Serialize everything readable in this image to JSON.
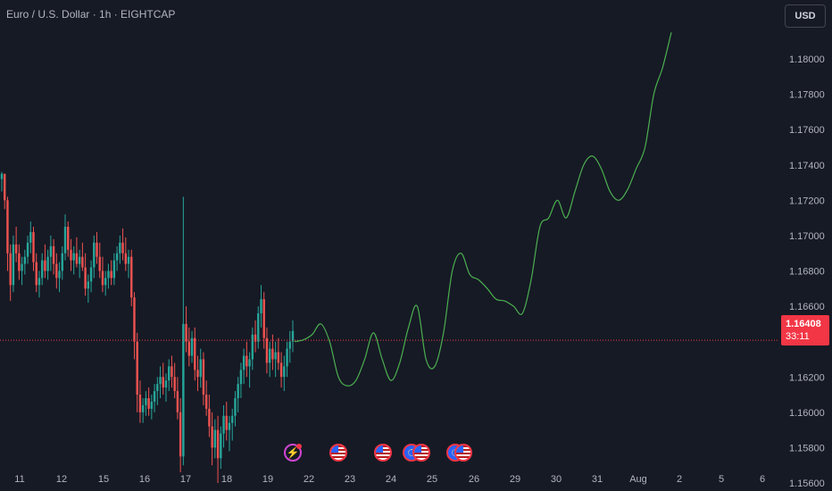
{
  "header": {
    "symbol_title": "Euro / U.S. Dollar · 1h · EIGHTCAP",
    "currency_button": "USD"
  },
  "price_axis": {
    "labels": [
      "1.18000",
      "1.17800",
      "1.17600",
      "1.17400",
      "1.17200",
      "1.17000",
      "1.16800",
      "1.16600",
      "1.16200",
      "1.16000",
      "1.15800",
      "1.15600"
    ]
  },
  "time_axis": {
    "labels": [
      "11",
      "12",
      "15",
      "16",
      "17",
      "18",
      "19",
      "22",
      "23",
      "24",
      "25",
      "26",
      "29",
      "30",
      "31",
      "Aug",
      "2",
      "5",
      "6"
    ]
  },
  "current_price": {
    "value": "1.16408",
    "countdown": "33:11"
  },
  "events": [
    {
      "icon": "lightning-event-icon"
    },
    {
      "icon": "us-flag-event-icon"
    },
    {
      "icon": "us-flag-event-icon"
    },
    {
      "icon": "eu-flag-event-icon"
    },
    {
      "icon": "us-flag-event-icon"
    },
    {
      "icon": "eu-flag-event-icon"
    },
    {
      "icon": "us-flag-event-icon"
    }
  ],
  "colors": {
    "background": "#161a25",
    "up": "#26a69a",
    "down": "#ef5350",
    "forecast_line": "#4caf50",
    "price_line": "#f23645",
    "axis_text": "#b2b5be"
  },
  "chart_data": {
    "type": "candlestick",
    "ylim": [
      1.1552,
      1.1818
    ],
    "current_price": 1.16408,
    "candles": [
      [
        1.1732,
        1.1736,
        1.1725,
        1.1735
      ],
      [
        1.1735,
        1.1735,
        1.1715,
        1.172
      ],
      [
        1.172,
        1.1722,
        1.168,
        1.169
      ],
      [
        1.169,
        1.1695,
        1.1663,
        1.1672
      ],
      [
        1.1672,
        1.17,
        1.1668,
        1.1695
      ],
      [
        1.1695,
        1.1705,
        1.1685,
        1.169
      ],
      [
        1.169,
        1.1695,
        1.1675,
        1.168
      ],
      [
        1.168,
        1.1688,
        1.1672,
        1.1684
      ],
      [
        1.1684,
        1.1692,
        1.1678,
        1.1688
      ],
      [
        1.1688,
        1.17,
        1.1684,
        1.1696
      ],
      [
        1.1696,
        1.1708,
        1.169,
        1.1702
      ],
      [
        1.1702,
        1.1705,
        1.168,
        1.1685
      ],
      [
        1.1685,
        1.169,
        1.1668,
        1.1672
      ],
      [
        1.1672,
        1.168,
        1.1665,
        1.1676
      ],
      [
        1.1676,
        1.169,
        1.1672,
        1.1686
      ],
      [
        1.1686,
        1.1695,
        1.1676,
        1.168
      ],
      [
        1.168,
        1.1692,
        1.1675,
        1.1688
      ],
      [
        1.1688,
        1.17,
        1.168,
        1.1694
      ],
      [
        1.1694,
        1.1698,
        1.1678,
        1.1684
      ],
      [
        1.1684,
        1.169,
        1.167,
        1.1676
      ],
      [
        1.1676,
        1.1685,
        1.1668,
        1.168
      ],
      [
        1.168,
        1.1694,
        1.1675,
        1.169
      ],
      [
        1.169,
        1.1712,
        1.1686,
        1.1705
      ],
      [
        1.1705,
        1.1708,
        1.1688,
        1.1692
      ],
      [
        1.1692,
        1.1698,
        1.168,
        1.1686
      ],
      [
        1.1686,
        1.1694,
        1.1678,
        1.169
      ],
      [
        1.169,
        1.1699,
        1.1682,
        1.1684
      ],
      [
        1.1684,
        1.1692,
        1.1676,
        1.1688
      ],
      [
        1.1688,
        1.1696,
        1.168,
        1.1682
      ],
      [
        1.1682,
        1.169,
        1.1666,
        1.167
      ],
      [
        1.167,
        1.1678,
        1.1662,
        1.1674
      ],
      [
        1.1674,
        1.1686,
        1.1668,
        1.1682
      ],
      [
        1.1682,
        1.17,
        1.1676,
        1.1696
      ],
      [
        1.1696,
        1.1702,
        1.1684,
        1.1688
      ],
      [
        1.1688,
        1.1696,
        1.1676,
        1.168
      ],
      [
        1.168,
        1.1688,
        1.1668,
        1.1672
      ],
      [
        1.1672,
        1.168,
        1.1666,
        1.1676
      ],
      [
        1.1676,
        1.1684,
        1.167,
        1.168
      ],
      [
        1.168,
        1.1686,
        1.1672,
        1.1676
      ],
      [
        1.1676,
        1.169,
        1.1672,
        1.1686
      ],
      [
        1.1686,
        1.1694,
        1.168,
        1.169
      ],
      [
        1.169,
        1.17,
        1.1684,
        1.1696
      ],
      [
        1.1696,
        1.1704,
        1.1686,
        1.169
      ],
      [
        1.169,
        1.1699,
        1.168,
        1.1684
      ],
      [
        1.1684,
        1.1692,
        1.1676,
        1.1688
      ],
      [
        1.1688,
        1.1692,
        1.166,
        1.1665
      ],
      [
        1.1665,
        1.1668,
        1.163,
        1.164
      ],
      [
        1.164,
        1.1645,
        1.16,
        1.161
      ],
      [
        1.161,
        1.1618,
        1.1594,
        1.16
      ],
      [
        1.16,
        1.1608,
        1.1594,
        1.1604
      ],
      [
        1.1604,
        1.1612,
        1.1598,
        1.1608
      ],
      [
        1.1608,
        1.1614,
        1.1598,
        1.1602
      ],
      [
        1.1602,
        1.161,
        1.1596,
        1.1606
      ],
      [
        1.1606,
        1.1616,
        1.16,
        1.1612
      ],
      [
        1.1612,
        1.162,
        1.1604,
        1.1616
      ],
      [
        1.1616,
        1.1626,
        1.1608,
        1.162
      ],
      [
        1.162,
        1.1628,
        1.161,
        1.1614
      ],
      [
        1.1614,
        1.1622,
        1.1606,
        1.1618
      ],
      [
        1.1618,
        1.163,
        1.1612,
        1.1626
      ],
      [
        1.1626,
        1.1632,
        1.1614,
        1.162
      ],
      [
        1.162,
        1.1628,
        1.1608,
        1.1612
      ],
      [
        1.1612,
        1.162,
        1.1596,
        1.16
      ],
      [
        1.16,
        1.1608,
        1.1566,
        1.1575
      ],
      [
        1.1575,
        1.1722,
        1.157,
        1.165
      ],
      [
        1.165,
        1.166,
        1.1634,
        1.164
      ],
      [
        1.164,
        1.1648,
        1.1626,
        1.1632
      ],
      [
        1.1632,
        1.1646,
        1.1628,
        1.1642
      ],
      [
        1.1642,
        1.1648,
        1.1618,
        1.1624
      ],
      [
        1.1624,
        1.1632,
        1.1612,
        1.162
      ],
      [
        1.162,
        1.1636,
        1.1614,
        1.163
      ],
      [
        1.163,
        1.1634,
        1.1604,
        1.161
      ],
      [
        1.161,
        1.1618,
        1.1598,
        1.1602
      ],
      [
        1.1602,
        1.161,
        1.1586,
        1.1592
      ],
      [
        1.1592,
        1.16,
        1.157,
        1.158
      ],
      [
        1.158,
        1.1596,
        1.1574,
        1.159
      ],
      [
        1.159,
        1.1598,
        1.156,
        1.1574
      ],
      [
        1.1574,
        1.1592,
        1.1568,
        1.1588
      ],
      [
        1.1588,
        1.1604,
        1.158,
        1.1598
      ],
      [
        1.1598,
        1.1606,
        1.1584,
        1.159
      ],
      [
        1.159,
        1.1598,
        1.1578,
        1.1594
      ],
      [
        1.1594,
        1.1602,
        1.1584,
        1.1598
      ],
      [
        1.1598,
        1.1612,
        1.1592,
        1.1608
      ],
      [
        1.1608,
        1.162,
        1.16,
        1.1616
      ],
      [
        1.1616,
        1.1628,
        1.1608,
        1.1624
      ],
      [
        1.1624,
        1.1636,
        1.1616,
        1.1632
      ],
      [
        1.1632,
        1.164,
        1.162,
        1.1626
      ],
      [
        1.1626,
        1.1634,
        1.1614,
        1.163
      ],
      [
        1.163,
        1.1648,
        1.1624,
        1.1644
      ],
      [
        1.1644,
        1.1652,
        1.1634,
        1.164
      ],
      [
        1.164,
        1.166,
        1.1636,
        1.1656
      ],
      [
        1.1656,
        1.1672,
        1.1648,
        1.1664
      ],
      [
        1.1664,
        1.1668,
        1.1636,
        1.1642
      ],
      [
        1.1642,
        1.1648,
        1.1622,
        1.1628
      ],
      [
        1.1628,
        1.164,
        1.162,
        1.1636
      ],
      [
        1.1636,
        1.1644,
        1.1624,
        1.163
      ],
      [
        1.163,
        1.164,
        1.162,
        1.1634
      ],
      [
        1.1634,
        1.1642,
        1.1624,
        1.1628
      ],
      [
        1.1628,
        1.1634,
        1.1614,
        1.162
      ],
      [
        1.162,
        1.1632,
        1.1612,
        1.1626
      ],
      [
        1.1626,
        1.164,
        1.162,
        1.1636
      ],
      [
        1.1636,
        1.1646,
        1.1628,
        1.164
      ],
      [
        1.164,
        1.1652,
        1.1634,
        1.1646
      ]
    ],
    "forecast": {
      "x_start": 330,
      "x_end": 752,
      "prices": [
        1.164,
        1.1641,
        1.1644,
        1.165,
        1.164,
        1.162,
        1.1615,
        1.1618,
        1.163,
        1.1645,
        1.163,
        1.1618,
        1.1628,
        1.1648,
        1.166,
        1.163,
        1.1626,
        1.1645,
        1.168,
        1.169,
        1.1678,
        1.1675,
        1.167,
        1.1664,
        1.1663,
        1.166,
        1.1656,
        1.1675,
        1.1705,
        1.171,
        1.172,
        1.171,
        1.1725,
        1.174,
        1.1745,
        1.1738,
        1.1725,
        1.172,
        1.1726,
        1.1738,
        1.175,
        1.178,
        1.1795,
        1.1815
      ]
    }
  }
}
